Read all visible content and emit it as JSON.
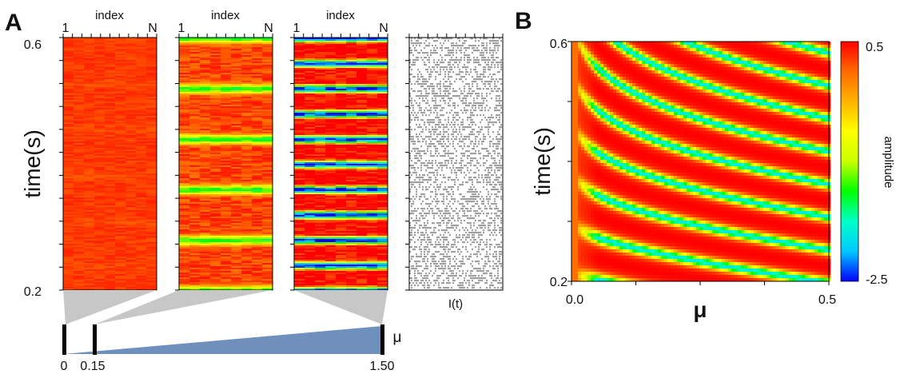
{
  "panel_labels": {
    "a": "A",
    "b": "B"
  },
  "colorscale": [
    "#0000ff",
    "#00c8ff",
    "#00ffc8",
    "#00ff00",
    "#c8ff00",
    "#ffff00",
    "#ffb300",
    "#ff6a00",
    "#ff0000"
  ],
  "chart_data": [
    {
      "type": "heatmap",
      "panel": "A",
      "ylabel": "time(s)",
      "xlabel": "index",
      "x_ticks": [
        "1",
        "N"
      ],
      "y_ticks": [
        "0.6",
        "0.2"
      ],
      "ylim": [
        0.2,
        0.6
      ],
      "subplots": [
        {
          "mu": 0,
          "min_amplitude": 0.25,
          "max_amplitude": 0.3
        },
        {
          "mu": 0.15,
          "min_amplitude": -1.4,
          "max_amplitude": 0.25
        },
        {
          "mu": 1.5,
          "min_amplitude": -2.5,
          "max_amplitude": 0.5
        }
      ],
      "raster_xlabel": "I(t)",
      "mu_axis": {
        "label": "μ",
        "ticks": [
          "0",
          "0.15",
          "1.50"
        ],
        "values": [
          0,
          0.15,
          1.5
        ]
      }
    },
    {
      "type": "heatmap",
      "panel": "B",
      "ylabel": "time(s)",
      "xlabel": "μ",
      "x_ticks": [
        "0.0",
        "0.5"
      ],
      "xlim": [
        0.0,
        0.5
      ],
      "y_ticks": [
        "0.6",
        "0.2"
      ],
      "ylim": [
        0.2,
        0.6
      ],
      "colorbar": {
        "label": "amplitude",
        "max": "0.5",
        "min": "-2.5",
        "range": [
          -2.5,
          0.5
        ]
      }
    }
  ]
}
